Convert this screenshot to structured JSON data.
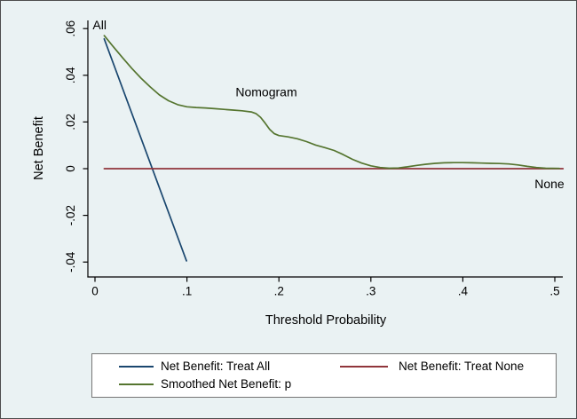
{
  "figure": {
    "background_color": "#eaf2f3",
    "plot_background_color": "#eaf2f3",
    "border_color": "#4d4d4d",
    "axis_color": "#000000",
    "legend_border_color": "#757575",
    "legend_background_color": "#ffffff"
  },
  "chart_data": {
    "type": "line",
    "title": "",
    "xlabel": "Threshold Probability",
    "ylabel": "Net Benefit",
    "xlim": [
      0,
      0.51
    ],
    "ylim": [
      -0.0465,
      0.0635
    ],
    "x_ticks": [
      0,
      0.1,
      0.2,
      0.3,
      0.4,
      0.5
    ],
    "x_tick_labels": [
      "0",
      ".1",
      ".2",
      ".3",
      ".4",
      ".5"
    ],
    "y_ticks": [
      0.06,
      0.04,
      0.02,
      0,
      -0.02,
      -0.04
    ],
    "y_tick_labels": [
      ".06",
      ".04",
      ".02",
      "0",
      "-.02",
      "-.04"
    ],
    "grid": false,
    "legend_position": "bottom",
    "series": [
      {
        "name": "Net Benefit: Treat All",
        "color": "#1a476f",
        "points": [
          [
            0.01,
            0.0556
          ],
          [
            0.0995,
            -0.0395
          ]
        ]
      },
      {
        "name": "Net Benefit: Treat None",
        "color": "#90353b",
        "points": [
          [
            0.01,
            0
          ],
          [
            0.509,
            0
          ]
        ]
      },
      {
        "name": "Smoothed Net Benefit: p",
        "color": "#55752f",
        "points": [
          [
            0.01,
            0.057
          ],
          [
            0.02,
            0.0522
          ],
          [
            0.03,
            0.0475
          ],
          [
            0.04,
            0.043
          ],
          [
            0.05,
            0.0388
          ],
          [
            0.06,
            0.035
          ],
          [
            0.07,
            0.0316
          ],
          [
            0.08,
            0.0291
          ],
          [
            0.09,
            0.0274
          ],
          [
            0.1,
            0.0265
          ],
          [
            0.11,
            0.0262
          ],
          [
            0.12,
            0.026
          ],
          [
            0.13,
            0.0257
          ],
          [
            0.14,
            0.0254
          ],
          [
            0.15,
            0.0251
          ],
          [
            0.16,
            0.0248
          ],
          [
            0.17,
            0.0243
          ],
          [
            0.175,
            0.0236
          ],
          [
            0.18,
            0.022
          ],
          [
            0.185,
            0.0195
          ],
          [
            0.19,
            0.0168
          ],
          [
            0.195,
            0.015
          ],
          [
            0.2,
            0.0142
          ],
          [
            0.21,
            0.0136
          ],
          [
            0.22,
            0.0128
          ],
          [
            0.23,
            0.0116
          ],
          [
            0.24,
            0.0101
          ],
          [
            0.25,
            0.009
          ],
          [
            0.26,
            0.0078
          ],
          [
            0.27,
            0.006
          ],
          [
            0.28,
            0.004
          ],
          [
            0.29,
            0.0024
          ],
          [
            0.3,
            0.0012
          ],
          [
            0.31,
            0.0005
          ],
          [
            0.32,
            0.0002
          ],
          [
            0.33,
            0.0003
          ],
          [
            0.34,
            0.0008
          ],
          [
            0.35,
            0.0014
          ],
          [
            0.36,
            0.0019
          ],
          [
            0.37,
            0.0023
          ],
          [
            0.38,
            0.0025
          ],
          [
            0.39,
            0.0026
          ],
          [
            0.4,
            0.0026
          ],
          [
            0.41,
            0.0025
          ],
          [
            0.42,
            0.0024
          ],
          [
            0.43,
            0.0023
          ],
          [
            0.44,
            0.0022
          ],
          [
            0.45,
            0.002
          ],
          [
            0.46,
            0.0016
          ],
          [
            0.47,
            0.001
          ],
          [
            0.48,
            0.0005
          ],
          [
            0.49,
            0.0002
          ],
          [
            0.505,
            0.0001
          ]
        ]
      }
    ],
    "annotations": [
      {
        "text": "All",
        "x": 0.005,
        "y": 0.0597
      },
      {
        "text": "Nomogram",
        "x": 0.1863,
        "y": 0.031
      },
      {
        "text": "None",
        "x": 0.4942,
        "y": -0.0084
      }
    ]
  },
  "legend": {
    "items": [
      {
        "label": "Net Benefit: Treat All",
        "color": "#1a476f"
      },
      {
        "label": "Net Benefit: Treat None",
        "color": "#90353b"
      },
      {
        "label": "Smoothed Net Benefit: p",
        "color": "#55752f"
      }
    ]
  }
}
